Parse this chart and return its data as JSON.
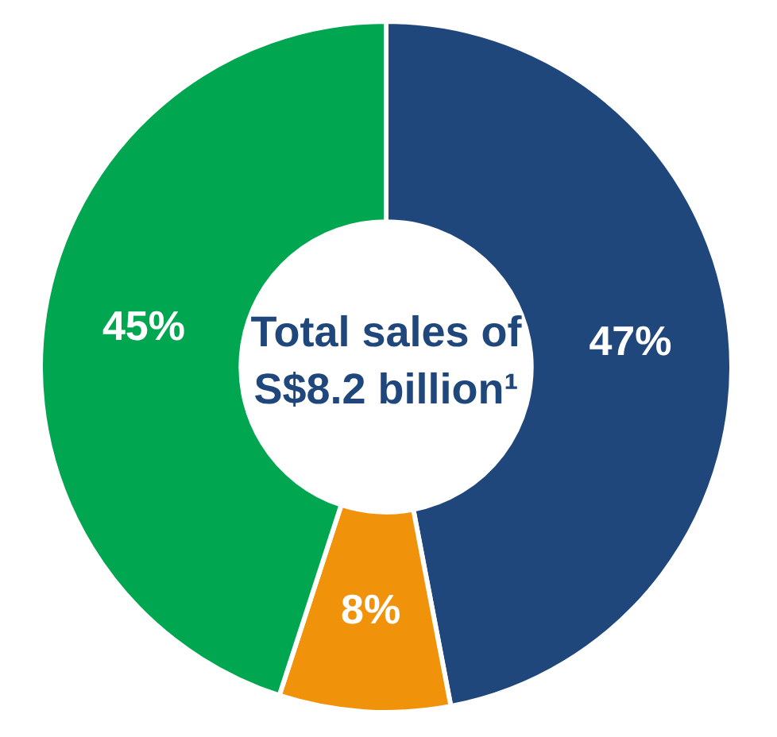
{
  "chart_data": {
    "type": "donut",
    "title": "Total sales of S$8.2 billion¹",
    "categories": [
      null,
      null,
      null
    ],
    "values": [
      47,
      8,
      45
    ],
    "colors": [
      "#20477b",
      "#f0920a",
      "#00a650"
    ],
    "value_labels": [
      "47%",
      "8%",
      "45%"
    ],
    "legend": false
  }
}
